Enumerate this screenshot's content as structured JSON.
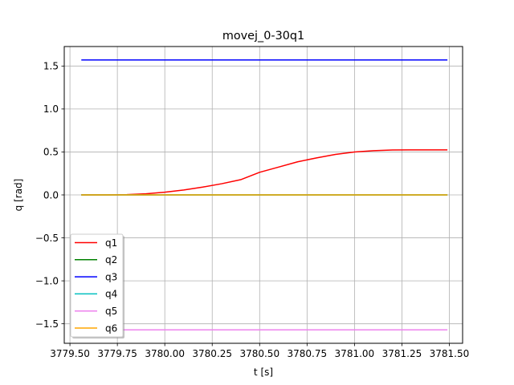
{
  "chart_data": {
    "type": "line",
    "title": "movej_0-30q1",
    "xlabel": "t [s]",
    "ylabel": "q [rad]",
    "xlim": [
      3779.47,
      3781.57
    ],
    "ylim": [
      -1.727,
      1.727
    ],
    "x_ticks": [
      3779.5,
      3779.75,
      3780.0,
      3780.25,
      3780.5,
      3780.75,
      3781.0,
      3781.25,
      3781.5
    ],
    "x_tick_labels": [
      "3779.50",
      "3779.75",
      "3780.00",
      "3780.25",
      "3780.50",
      "3780.75",
      "3781.00",
      "3781.25",
      "3781.50"
    ],
    "y_ticks": [
      -1.5,
      -1.0,
      -0.5,
      0.0,
      0.5,
      1.0,
      1.5
    ],
    "y_tick_labels": [
      "−1.5",
      "−1.0",
      "−0.5",
      "0.0",
      "0.5",
      "1.0",
      "1.5"
    ],
    "grid": true,
    "legend_position": "lower-left",
    "x": [
      3779.56,
      3779.7,
      3779.8,
      3779.9,
      3780.0,
      3780.1,
      3780.2,
      3780.3,
      3780.4,
      3780.5,
      3780.6,
      3780.7,
      3780.8,
      3780.9,
      3781.0,
      3781.1,
      3781.2,
      3781.3,
      3781.4,
      3781.49
    ],
    "series": [
      {
        "name": "q1",
        "color": "#ff0000",
        "values": [
          0.0,
          0.0,
          0.004,
          0.013,
          0.031,
          0.057,
          0.091,
          0.13,
          0.177,
          0.263,
          0.324,
          0.385,
          0.431,
          0.471,
          0.499,
          0.515,
          0.523,
          0.524,
          0.524,
          0.524
        ]
      },
      {
        "name": "q2",
        "color": "#008000",
        "values": [
          0.0,
          0.0,
          0.0,
          0.0,
          0.0,
          0.0,
          0.0,
          0.0,
          0.0,
          0.0,
          0.0,
          0.0,
          0.0,
          0.0,
          0.0,
          0.0,
          0.0,
          0.0,
          0.0,
          0.0
        ]
      },
      {
        "name": "q3",
        "color": "#0000ff",
        "values": [
          1.571,
          1.571,
          1.571,
          1.571,
          1.571,
          1.571,
          1.571,
          1.571,
          1.571,
          1.571,
          1.571,
          1.571,
          1.571,
          1.571,
          1.571,
          1.571,
          1.571,
          1.571,
          1.571,
          1.571
        ]
      },
      {
        "name": "q4",
        "color": "#00bfbf",
        "values": [
          0.0,
          0.0,
          0.0,
          0.0,
          0.0,
          0.0,
          0.0,
          0.0,
          0.0,
          0.0,
          0.0,
          0.0,
          0.0,
          0.0,
          0.0,
          0.0,
          0.0,
          0.0,
          0.0,
          0.0
        ]
      },
      {
        "name": "q5",
        "color": "#ee82ee",
        "values": [
          -1.571,
          -1.571,
          -1.571,
          -1.571,
          -1.571,
          -1.571,
          -1.571,
          -1.571,
          -1.571,
          -1.571,
          -1.571,
          -1.571,
          -1.571,
          -1.571,
          -1.571,
          -1.571,
          -1.571,
          -1.571,
          -1.571,
          -1.571
        ]
      },
      {
        "name": "q6",
        "color": "#ffa500",
        "values": [
          0.0,
          0.0,
          0.0,
          0.0,
          0.0,
          0.0,
          0.0,
          0.0,
          0.0,
          0.0,
          0.0,
          0.0,
          0.0,
          0.0,
          0.0,
          0.0,
          0.0,
          0.0,
          0.0,
          0.0
        ]
      }
    ]
  }
}
